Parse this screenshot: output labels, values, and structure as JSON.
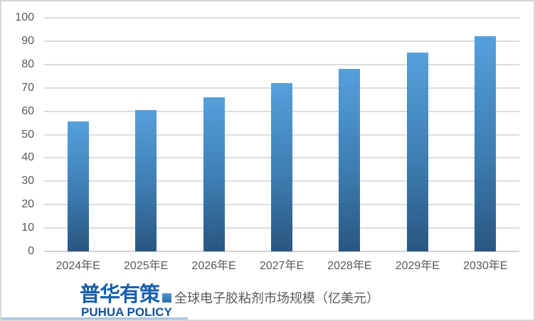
{
  "chart_data": {
    "type": "bar",
    "categories": [
      "2024年E",
      "2025年E",
      "2026年E",
      "2027年E",
      "2028年E",
      "2029年E",
      "2030年E"
    ],
    "series": [
      {
        "name": "全球电子胶粘剂市场规模（亿美元）",
        "values": [
          55.5,
          60.5,
          66,
          72,
          78,
          85,
          92
        ]
      }
    ],
    "title": "",
    "xlabel": "",
    "ylabel": "",
    "ylim": [
      0,
      100
    ],
    "ytick_step": 10,
    "grid": true,
    "legend_position": "bottom"
  },
  "legend": {
    "label": "全球电子胶粘剂市场规模（亿美元）"
  },
  "logo": {
    "line1": "普华有策",
    "line2": "PUHUA POLICY"
  },
  "colors": {
    "bar_gradient_top": "#55a0dc",
    "bar_gradient_bottom": "#295680",
    "gridline": "#dcdcdc",
    "axis_label": "#595959",
    "logo_blue": "#1760ae",
    "logo_sub_blue": "#14509e",
    "bottom_accent_line": "#a5c4e4",
    "frame_border": "#d7d7d7"
  }
}
